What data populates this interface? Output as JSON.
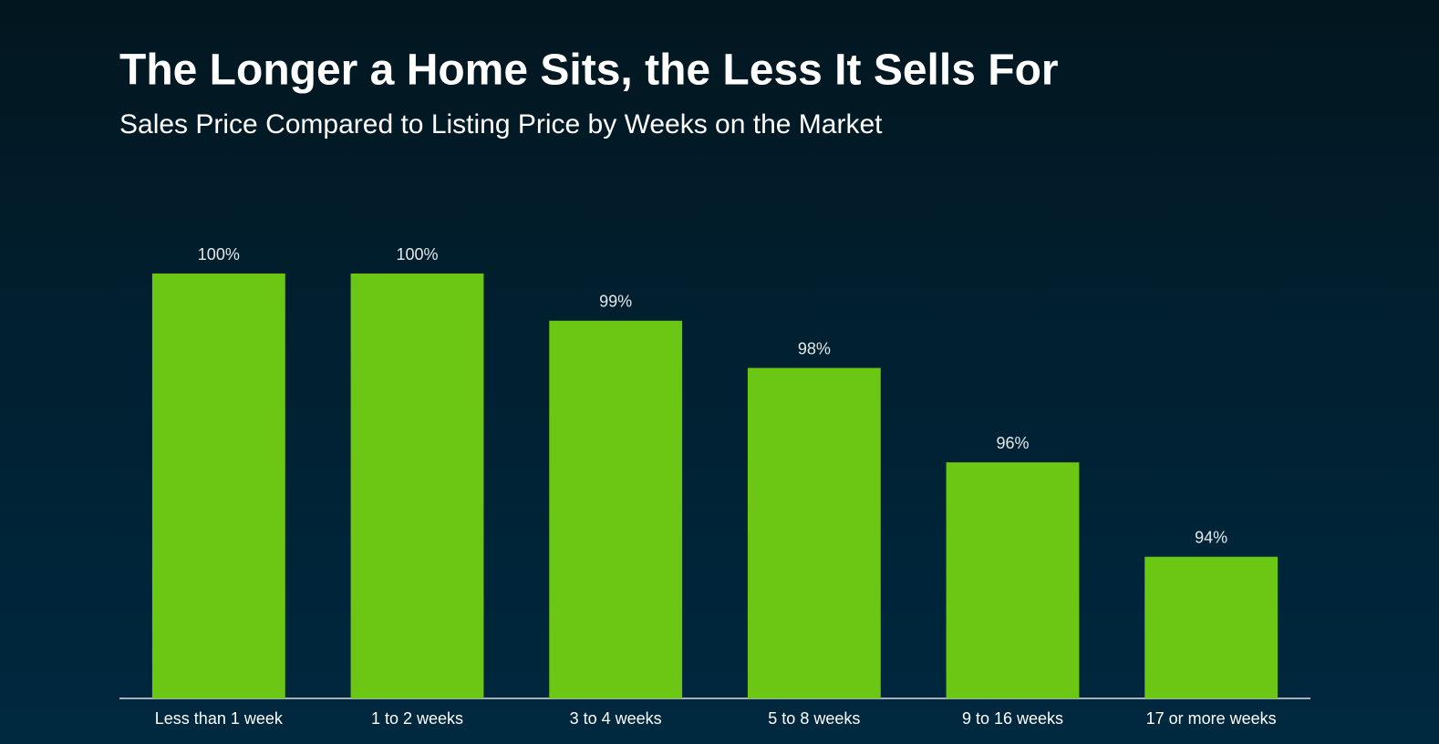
{
  "chart_data": {
    "type": "bar",
    "title": "The Longer a Home Sits, the Less It Sells For",
    "subtitle": "Sales Price Compared to Listing Price by Weeks on the Market",
    "categories": [
      "Less than 1 week",
      "1 to 2 weeks",
      "3 to 4 weeks",
      "5 to 8 weeks",
      "9 to 16 weeks",
      "17 or more weeks"
    ],
    "values": [
      100,
      100,
      99,
      98,
      96,
      94
    ],
    "value_labels": [
      "100%",
      "100%",
      "99%",
      "98%",
      "96%",
      "94%"
    ],
    "color": "#6cc614",
    "ylim": [
      91,
      100
    ]
  }
}
